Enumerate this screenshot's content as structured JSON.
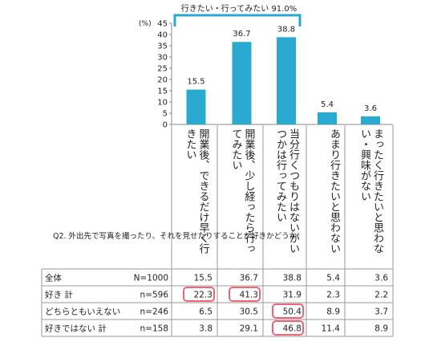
{
  "chart_data": {
    "type": "bar",
    "bracket_label": "行きたい・行ってみたい 91.0%",
    "unit_label": "(%)",
    "ylim": [
      0,
      45
    ],
    "yticks": [
      0,
      5,
      10,
      15,
      20,
      25,
      30,
      35,
      40,
      45
    ],
    "grid": false,
    "bar_color": "#2aaad0",
    "highlight_color": "#f06478",
    "categories": [
      "開業後、できるだけ早く行きたい",
      "開業後、少し経ったら行ってみたい",
      "当分行くつもりはないがいつかは行ってみたい",
      "あまり行きたいと思わない",
      "まったく行きたいと思わない・興味がない"
    ],
    "values": [
      15.5,
      36.7,
      38.8,
      5.4,
      3.6
    ],
    "question": "Q2. 外出先で写真を撮ったり、それを見せたりすることが好きかどうか",
    "table": [
      {
        "label": "全体",
        "n": "N=1000",
        "values": [
          "15.5",
          "36.7",
          "38.8",
          "5.4",
          "3.6"
        ],
        "highlight": []
      },
      {
        "label": "好き 計",
        "n": "n=596",
        "values": [
          "22.3",
          "41.3",
          "31.9",
          "2.3",
          "2.2"
        ],
        "highlight": [
          0,
          1
        ]
      },
      {
        "label": "どちらともいえない",
        "n": "n=246",
        "values": [
          "6.5",
          "30.5",
          "50.4",
          "8.9",
          "3.7"
        ],
        "highlight": [
          2
        ]
      },
      {
        "label": "好きではない 計",
        "n": "n=158",
        "values": [
          "3.8",
          "29.1",
          "46.8",
          "11.4",
          "8.9"
        ],
        "highlight": [
          2
        ]
      }
    ]
  }
}
